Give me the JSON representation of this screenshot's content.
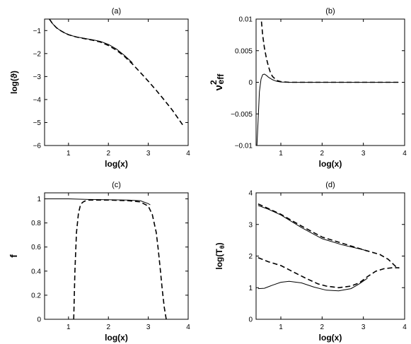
{
  "chart_data": [
    {
      "type": "line",
      "title": "(a)",
      "xlabel": "log(x)",
      "ylabel": "log(ϑ)",
      "xlim": [
        0.4,
        4
      ],
      "ylim": [
        -6,
        -0.5
      ],
      "xticks": [
        1,
        2,
        3,
        4
      ],
      "yticks": [
        -6,
        -5,
        -4,
        -3,
        -2,
        -1
      ],
      "xtick_labels": [
        "1",
        "2",
        "3",
        "4"
      ],
      "ytick_labels": [
        "−6",
        "−5",
        "−4",
        "−3",
        "−2",
        "−1"
      ],
      "grid": false,
      "series": [
        {
          "style": "solid",
          "x": [
            0.52,
            0.6,
            0.7,
            0.8,
            0.9,
            1.0,
            1.2,
            1.4,
            1.6,
            1.8,
            2.0,
            2.2,
            2.4,
            2.6
          ],
          "y": [
            -0.5,
            -0.7,
            -0.88,
            -1.0,
            -1.1,
            -1.18,
            -1.28,
            -1.34,
            -1.4,
            -1.47,
            -1.6,
            -1.8,
            -2.08,
            -2.4
          ]
        },
        {
          "style": "dashed",
          "x": [
            0.52,
            0.6,
            0.7,
            0.8,
            0.9,
            1.0,
            1.2,
            1.4,
            1.6,
            1.8,
            2.0,
            2.2,
            2.4,
            2.6,
            2.8,
            3.0,
            3.2,
            3.4,
            3.6,
            3.87
          ],
          "y": [
            -0.5,
            -0.7,
            -0.88,
            -1.0,
            -1.1,
            -1.18,
            -1.28,
            -1.35,
            -1.42,
            -1.5,
            -1.65,
            -1.85,
            -2.12,
            -2.45,
            -2.82,
            -3.2,
            -3.6,
            -4.02,
            -4.45,
            -5.12
          ]
        }
      ]
    },
    {
      "type": "line",
      "title": "(b)",
      "xlabel": "log(x)",
      "ylabel": "ν",
      "ylabel_sup": "2",
      "ylabel_sub": "eff",
      "xlim": [
        0.4,
        4
      ],
      "ylim": [
        -0.01,
        0.01
      ],
      "xticks": [
        1,
        2,
        3,
        4
      ],
      "yticks": [
        -0.01,
        -0.005,
        0,
        0.005,
        0.01
      ],
      "xtick_labels": [
        "1",
        "2",
        "3",
        "4"
      ],
      "ytick_labels": [
        "−0.01",
        "−0.005",
        "0",
        "0.005",
        "0.01"
      ],
      "grid": false,
      "series": [
        {
          "style": "solid",
          "x": [
            0.42,
            0.45,
            0.48,
            0.52,
            0.56,
            0.6,
            0.65,
            0.7,
            0.8,
            0.9,
            1.0,
            1.2,
            1.5,
            2.0,
            3.0,
            3.85
          ],
          "y": [
            -0.01,
            -0.006,
            -0.0015,
            0.0005,
            0.0012,
            0.0013,
            0.0011,
            0.0008,
            0.0004,
            0.00015,
            5e-05,
            0.0,
            0.0,
            0.0,
            0.0,
            0.0
          ]
        },
        {
          "style": "dashed",
          "x": [
            0.53,
            0.56,
            0.6,
            0.65,
            0.7,
            0.75,
            0.8,
            0.9,
            1.0,
            1.2,
            1.5,
            2.0,
            3.0,
            3.85
          ],
          "y": [
            0.0096,
            0.0075,
            0.0055,
            0.0038,
            0.0025,
            0.0015,
            0.0009,
            0.0003,
            0.0001,
            0.0,
            0.0,
            0.0,
            0.0,
            0.0
          ]
        }
      ]
    },
    {
      "type": "line",
      "title": "(c)",
      "xlabel": "log(x)",
      "ylabel": "f",
      "xlim": [
        0.4,
        4
      ],
      "ylim": [
        0,
        1.05
      ],
      "xticks": [
        1,
        2,
        3,
        4
      ],
      "yticks": [
        0,
        0.2,
        0.4,
        0.6,
        0.8,
        1
      ],
      "xtick_labels": [
        "1",
        "2",
        "3",
        "4"
      ],
      "ytick_labels": [
        "0",
        "0.2",
        "0.4",
        "0.6",
        "0.8",
        "1"
      ],
      "grid": false,
      "series": [
        {
          "style": "solid",
          "x": [
            0.4,
            1.0,
            1.5,
            2.0,
            2.5,
            2.8,
            3.0,
            3.05
          ],
          "y": [
            1.0,
            1.0,
            0.995,
            0.993,
            0.99,
            0.985,
            0.96,
            0.95
          ]
        },
        {
          "style": "dashed",
          "x": [
            1.13,
            1.16,
            1.2,
            1.25,
            1.3,
            1.35,
            1.4,
            1.5,
            1.7,
            2.0,
            2.5,
            2.8,
            3.0,
            3.1,
            3.2,
            3.25,
            3.3,
            3.35,
            3.4,
            3.45
          ],
          "y": [
            0.0,
            0.4,
            0.72,
            0.88,
            0.95,
            0.97,
            0.98,
            0.99,
            0.99,
            0.99,
            0.985,
            0.975,
            0.94,
            0.87,
            0.72,
            0.58,
            0.42,
            0.25,
            0.1,
            0.0
          ]
        }
      ]
    },
    {
      "type": "line",
      "title": "(d)",
      "xlabel": "log(x)",
      "ylabel": "log(T",
      "ylabel_sub": "θ",
      "ylabel_end": ")",
      "xlim": [
        0.4,
        4
      ],
      "ylim": [
        0,
        4
      ],
      "xticks": [
        1,
        2,
        3,
        4
      ],
      "yticks": [
        0,
        1,
        2,
        3,
        4
      ],
      "xtick_labels": [
        "1",
        "2",
        "3",
        "4"
      ],
      "ytick_labels": [
        "0",
        "1",
        "2",
        "3",
        "4"
      ],
      "grid": false,
      "series": [
        {
          "style": "solid",
          "x": [
            0.45,
            0.7,
            1.0,
            1.5,
            2.0,
            2.5,
            3.0,
            3.1
          ],
          "y": [
            3.6,
            3.48,
            3.3,
            2.9,
            2.55,
            2.35,
            2.2,
            2.15
          ]
        },
        {
          "style": "dashed",
          "x": [
            0.45,
            0.7,
            1.0,
            1.5,
            2.0,
            2.5,
            3.0,
            3.4,
            3.6,
            3.8,
            3.87
          ],
          "y": [
            3.65,
            3.5,
            3.32,
            2.95,
            2.6,
            2.4,
            2.2,
            2.05,
            1.9,
            1.65,
            1.62
          ]
        },
        {
          "style": "solid",
          "x": [
            0.45,
            0.6,
            0.8,
            1.0,
            1.2,
            1.5,
            1.8,
            2.1,
            2.4,
            2.7,
            2.9,
            3.1
          ],
          "y": [
            0.97,
            0.98,
            1.08,
            1.17,
            1.2,
            1.15,
            1.02,
            0.92,
            0.9,
            0.97,
            1.12,
            1.3
          ]
        },
        {
          "style": "dashed",
          "x": [
            0.45,
            0.7,
            1.0,
            1.3,
            1.6,
            1.9,
            2.1,
            2.4,
            2.7,
            2.9,
            3.1,
            3.3,
            3.5,
            3.7,
            3.87
          ],
          "y": [
            1.95,
            1.82,
            1.7,
            1.5,
            1.3,
            1.12,
            1.05,
            1.0,
            1.05,
            1.15,
            1.35,
            1.52,
            1.6,
            1.63,
            1.63
          ]
        }
      ]
    }
  ]
}
